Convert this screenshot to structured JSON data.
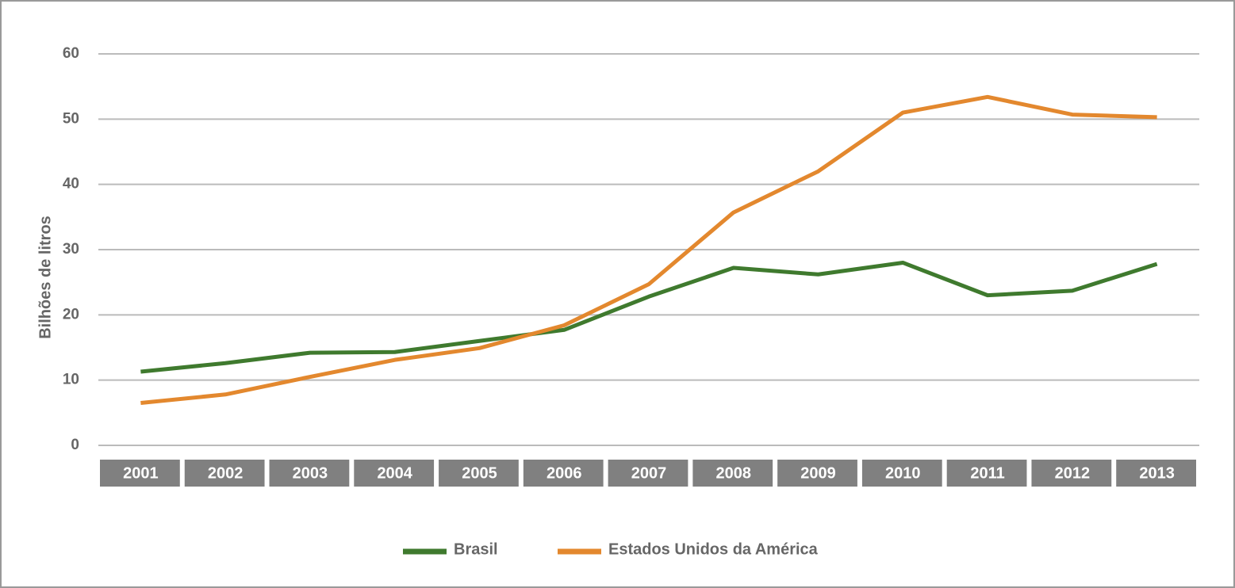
{
  "chart_data": {
    "type": "line",
    "y_label": "Bilhões de litros",
    "categories": [
      "2001",
      "2002",
      "2003",
      "2004",
      "2005",
      "2006",
      "2007",
      "2008",
      "2009",
      "2010",
      "2011",
      "2012",
      "2013"
    ],
    "series": [
      {
        "name": "Brasil",
        "color": "#3f7a2e",
        "values": [
          11.3,
          12.6,
          14.2,
          14.3,
          16,
          17.7,
          22.8,
          27.2,
          26.2,
          28,
          23,
          23.7,
          27.8
        ]
      },
      {
        "name": "Estados Unidos da América",
        "color": "#e3882e",
        "values": [
          6.5,
          7.8,
          10.5,
          13.1,
          14.9,
          18.4,
          24.7,
          35.7,
          42,
          51,
          53.4,
          50.7,
          50.3
        ]
      }
    ],
    "ylim": [
      0,
      60
    ],
    "yticks": [
      0,
      10,
      20,
      30,
      40,
      50,
      60
    ],
    "grid": true
  }
}
